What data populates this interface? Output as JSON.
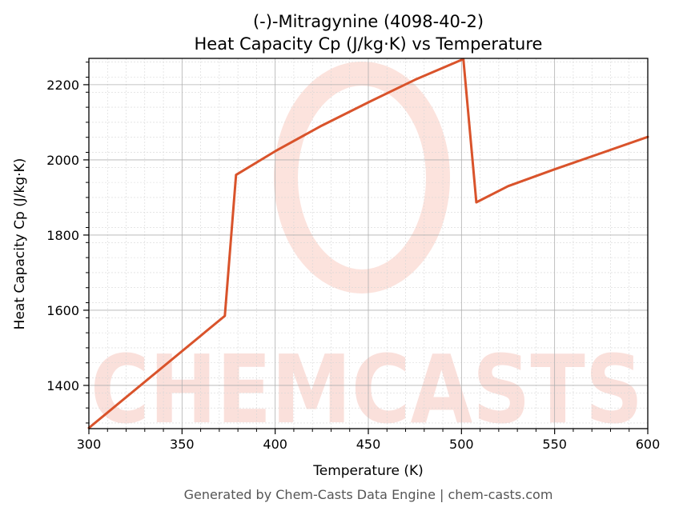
{
  "chart_data": {
    "type": "line",
    "title": "(-)-Mitragynine (4098-40-2)",
    "subtitle": "Heat Capacity Cp (J/kg·K) vs Temperature",
    "xlabel": "Temperature (K)",
    "ylabel": "Heat Capacity Cp (J/kg·K)",
    "xlim": [
      300,
      600
    ],
    "ylim": [
      1285,
      2270
    ],
    "x_ticks": [
      300,
      350,
      400,
      450,
      500,
      550,
      600
    ],
    "y_ticks": [
      1400,
      1600,
      1800,
      2000,
      2200
    ],
    "grid": true,
    "series": [
      {
        "color": "#d9532b",
        "x": [
          300,
          373,
          379,
          400,
          425,
          450,
          475,
          501,
          508,
          525,
          550,
          575,
          600
        ],
        "y": [
          1287,
          1585,
          1960,
          2023,
          2091,
          2153,
          2213,
          2268,
          1887,
          1930,
          1975,
          2018,
          2061
        ]
      }
    ]
  },
  "watermark": {
    "text": "CHEMCASTS",
    "color": "#f7c7bf"
  },
  "footer": "Generated by Chem-Casts Data Engine | chem-casts.com"
}
